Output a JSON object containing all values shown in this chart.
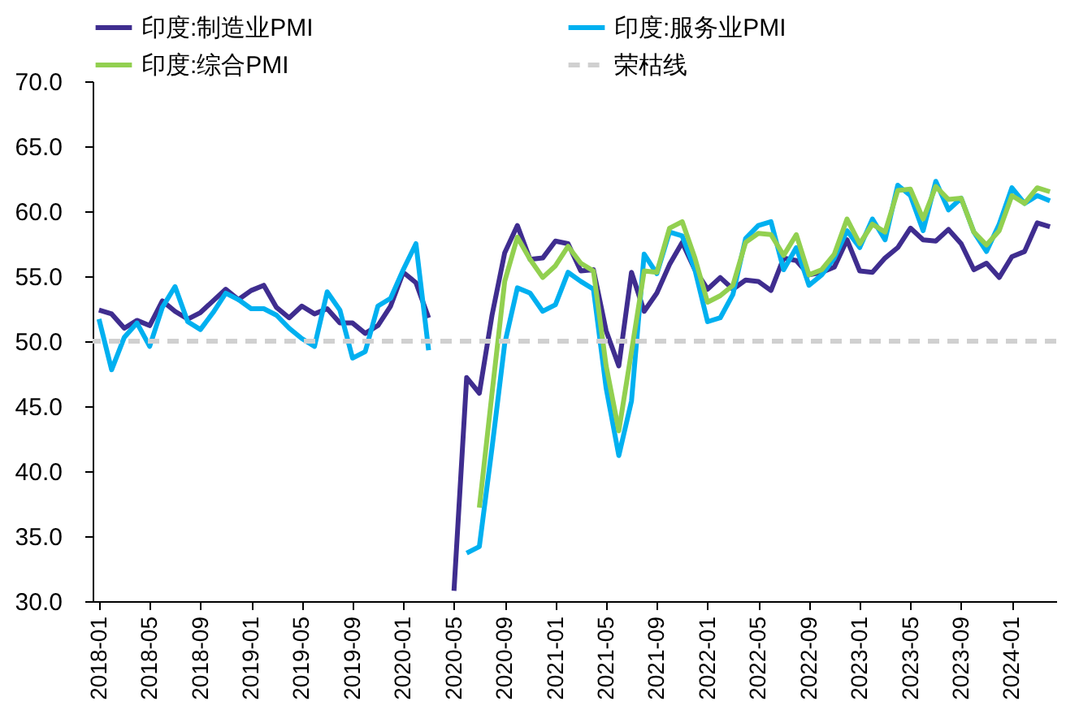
{
  "chart_data": {
    "type": "line",
    "categories": [
      "2018-01",
      null,
      null,
      null,
      "2018-05",
      null,
      null,
      null,
      "2018-09",
      null,
      null,
      null,
      "2019-01",
      null,
      null,
      null,
      "2019-05",
      null,
      null,
      null,
      "2019-09",
      null,
      null,
      null,
      "2020-01",
      null,
      null,
      null,
      "2020-05",
      null,
      null,
      null,
      "2020-09",
      null,
      null,
      null,
      "2021-01",
      null,
      null,
      null,
      "2021-05",
      null,
      null,
      null,
      "2021-09",
      null,
      null,
      null,
      "2022-01",
      null,
      null,
      null,
      "2022-05",
      null,
      null,
      null,
      "2022-09",
      null,
      null,
      null,
      "2023-01",
      null,
      null,
      null,
      "2023-05",
      null,
      null,
      null,
      "2023-09",
      null,
      null,
      null,
      "2024-01",
      null,
      null,
      null
    ],
    "series": [
      {
        "name": "印度:制造业PMI",
        "color": "#3f2d8f",
        "values": [
          52.4,
          52.1,
          51.0,
          51.6,
          51.2,
          53.1,
          52.3,
          51.7,
          52.2,
          53.1,
          54.0,
          53.2,
          53.9,
          54.3,
          52.6,
          51.8,
          52.7,
          52.1,
          52.5,
          51.4,
          51.4,
          50.6,
          51.2,
          52.7,
          55.3,
          54.5,
          51.8,
          null,
          30.8,
          47.2,
          46.0,
          52.0,
          56.8,
          58.9,
          56.3,
          56.4,
          57.7,
          57.5,
          55.4,
          55.5,
          50.8,
          48.1,
          55.3,
          52.3,
          53.7,
          55.9,
          57.6,
          55.5,
          54.0,
          54.9,
          54.0,
          54.7,
          54.6,
          53.9,
          56.4,
          56.2,
          55.1,
          55.3,
          55.7,
          57.8,
          55.4,
          55.3,
          56.4,
          57.2,
          58.7,
          57.8,
          57.7,
          58.6,
          57.5,
          55.5,
          56.0,
          54.9,
          56.5,
          56.9,
          59.1,
          58.8
        ]
      },
      {
        "name": "印度:服务业PMI",
        "color": "#00b0f0",
        "values": [
          51.7,
          47.8,
          50.3,
          51.4,
          49.6,
          52.6,
          54.2,
          51.5,
          50.9,
          52.2,
          53.7,
          53.2,
          52.5,
          52.5,
          52.0,
          51.0,
          50.2,
          49.6,
          53.8,
          52.4,
          48.7,
          49.2,
          52.7,
          53.3,
          55.5,
          57.5,
          49.3,
          null,
          null,
          33.7,
          34.2,
          41.8,
          49.8,
          54.1,
          53.7,
          52.3,
          52.8,
          55.3,
          54.6,
          54.0,
          46.4,
          41.2,
          45.4,
          56.7,
          55.2,
          58.4,
          58.1,
          55.5,
          51.5,
          51.8,
          53.6,
          57.9,
          58.9,
          59.2,
          55.5,
          57.2,
          54.3,
          55.1,
          56.4,
          58.5,
          57.2,
          59.4,
          57.8,
          62.0,
          61.2,
          58.5,
          62.3,
          60.1,
          61.0,
          58.4,
          56.9,
          59.0,
          61.8,
          60.6,
          61.2,
          60.8
        ]
      },
      {
        "name": "印度:综合PMI",
        "color": "#92d050",
        "values": [
          null,
          null,
          null,
          null,
          null,
          null,
          null,
          null,
          null,
          null,
          null,
          null,
          null,
          null,
          null,
          null,
          null,
          null,
          null,
          null,
          null,
          null,
          null,
          null,
          null,
          null,
          null,
          null,
          null,
          null,
          37.2,
          46.0,
          54.6,
          58.0,
          56.3,
          54.9,
          55.8,
          57.3,
          56.0,
          55.4,
          48.1,
          43.1,
          49.2,
          55.4,
          55.3,
          58.7,
          59.2,
          56.4,
          53.0,
          53.5,
          54.3,
          57.6,
          58.3,
          58.2,
          56.6,
          58.2,
          55.1,
          55.5,
          56.7,
          59.4,
          57.5,
          59.0,
          58.4,
          61.6,
          61.7,
          59.4,
          61.9,
          60.9,
          61.0,
          58.4,
          57.4,
          58.5,
          61.2,
          60.6,
          61.8,
          61.5
        ]
      }
    ],
    "ref_lines": [
      {
        "axis": "y",
        "value": 50,
        "label": "荣枯线",
        "color": "#d0d0d0",
        "line_style": "dashed"
      }
    ],
    "ylim": [
      30,
      70
    ],
    "yticks": [
      {
        "value": 30,
        "label": "30.0"
      },
      {
        "value": 35,
        "label": "35.0"
      },
      {
        "value": 40,
        "label": "40.0"
      },
      {
        "value": 45,
        "label": "45.0"
      },
      {
        "value": 50,
        "label": "50.0"
      },
      {
        "value": 55,
        "label": "55.0"
      },
      {
        "value": 60,
        "label": "60.0"
      },
      {
        "value": 65,
        "label": "65.0"
      },
      {
        "value": 70,
        "label": "70.0"
      }
    ],
    "grid": false,
    "legend": "top",
    "line_style": "solid",
    "marker": "none"
  }
}
